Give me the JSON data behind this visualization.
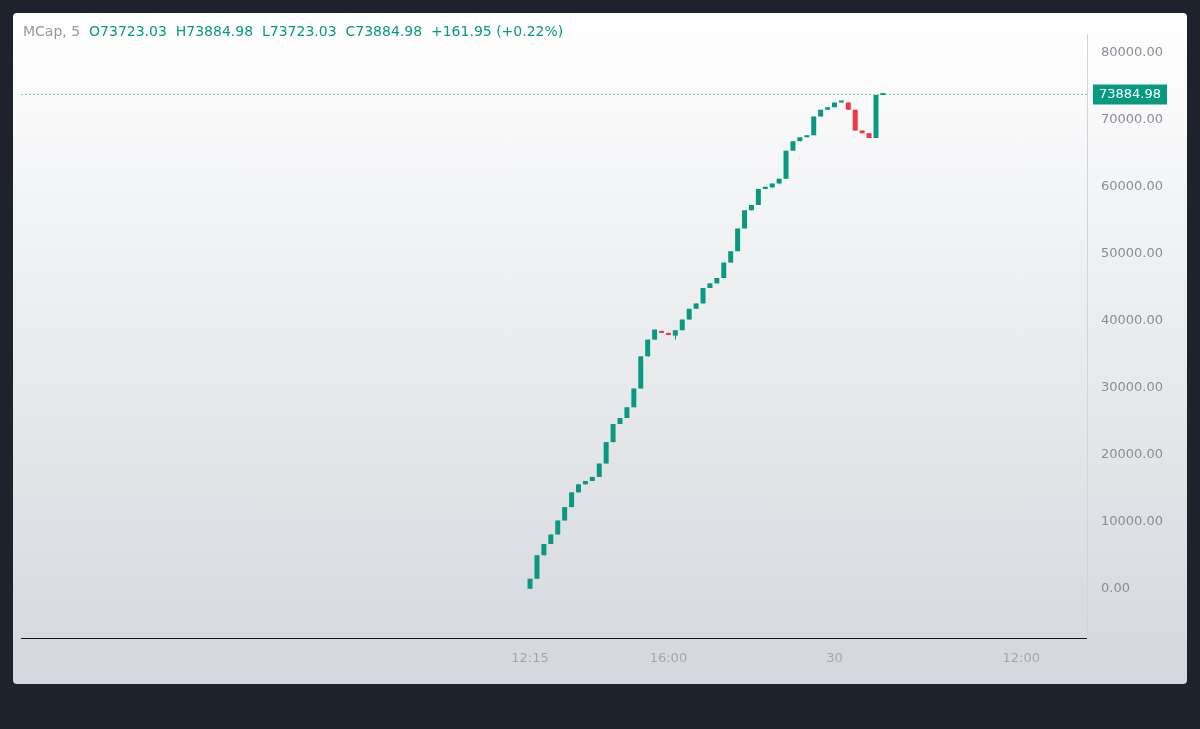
{
  "chart_data": {
    "type": "candlestick",
    "title": "MCap, 5",
    "subtitle": "O73723.03  H73884.98  L73723.03  C73884.98  +161.95 (+0.22%)",
    "categories": [
      null,
      null,
      null,
      null,
      null,
      null,
      null,
      null,
      null,
      null,
      null,
      null,
      null,
      null,
      null,
      null,
      null,
      null,
      null,
      null,
      null,
      null,
      null,
      null,
      null,
      null,
      null,
      null,
      null,
      null,
      null,
      null,
      null,
      null,
      null,
      null,
      null,
      null,
      null,
      null,
      null,
      null,
      null,
      null,
      null,
      null,
      null,
      null,
      null,
      null,
      null,
      null,
      null,
      null,
      null,
      null,
      null,
      null,
      null,
      null,
      null,
      null,
      null,
      null,
      null,
      null,
      null,
      null,
      null,
      null,
      null,
      null,
      null,
      "12:15",
      null,
      null,
      null,
      null,
      null,
      null,
      null,
      null,
      null,
      null,
      null,
      null,
      null,
      null,
      null,
      null,
      null,
      null,
      null,
      "16:00",
      null,
      null,
      null,
      null,
      null,
      null,
      null,
      null,
      null,
      null,
      null,
      null,
      null,
      null,
      null,
      null,
      null,
      null,
      null,
      null,
      null,
      null,
      null,
      "30",
      null,
      null,
      null,
      null,
      null,
      null,
      null,
      null,
      null,
      null,
      null,
      null,
      null,
      null,
      null,
      null,
      null,
      null,
      null,
      null,
      null,
      null,
      null,
      null,
      null,
      null,
      "12:00",
      null,
      null,
      null,
      null,
      null,
      null,
      null,
      null,
      null
    ],
    "ohlc": [
      null,
      null,
      null,
      null,
      null,
      null,
      null,
      null,
      null,
      null,
      null,
      null,
      null,
      null,
      null,
      null,
      null,
      null,
      null,
      null,
      null,
      null,
      null,
      null,
      null,
      null,
      null,
      null,
      null,
      null,
      null,
      null,
      null,
      null,
      null,
      null,
      null,
      null,
      null,
      null,
      null,
      null,
      null,
      null,
      null,
      null,
      null,
      null,
      null,
      null,
      null,
      null,
      null,
      null,
      null,
      null,
      null,
      null,
      null,
      null,
      null,
      null,
      null,
      null,
      null,
      null,
      null,
      null,
      null,
      null,
      null,
      null,
      null,
      [
        0,
        1500,
        0,
        1500
      ],
      [
        1500,
        5000,
        1500,
        5000
      ],
      [
        5000,
        6700,
        5000,
        6700
      ],
      [
        6700,
        8100,
        6700,
        8100
      ],
      [
        8100,
        10200,
        8100,
        10200
      ],
      [
        10200,
        12200,
        10200,
        12200
      ],
      [
        12200,
        14400,
        12200,
        14400
      ],
      [
        14400,
        15600,
        14400,
        15600
      ],
      [
        15600,
        16100,
        15600,
        16100
      ],
      [
        16100,
        16700,
        16100,
        16700
      ],
      [
        16700,
        18700,
        16700,
        18700
      ],
      [
        18700,
        21900,
        18700,
        21900
      ],
      [
        21900,
        24600,
        21900,
        24600
      ],
      [
        24600,
        25500,
        24600,
        25500
      ],
      [
        25500,
        27100,
        25500,
        27100
      ],
      [
        27100,
        29900,
        27100,
        29900
      ],
      [
        29900,
        34700,
        29900,
        34700
      ],
      [
        34700,
        37200,
        34700,
        37200
      ],
      [
        37200,
        38700,
        37200,
        38700
      ],
      [
        38500,
        38500,
        38200,
        38200
      ],
      [
        38200,
        38200,
        37900,
        37900
      ],
      [
        37800,
        38600,
        37200,
        38600
      ],
      [
        38600,
        40200,
        38600,
        40200
      ],
      [
        40200,
        41800,
        40200,
        41800
      ],
      [
        41800,
        42600,
        41800,
        42600
      ],
      [
        42600,
        44900,
        42600,
        44900
      ],
      [
        44900,
        45600,
        44900,
        45600
      ],
      [
        45600,
        46400,
        45600,
        46400
      ],
      [
        46400,
        48700,
        46400,
        48700
      ],
      [
        48700,
        50400,
        48700,
        50400
      ],
      [
        50400,
        53800,
        50400,
        53800
      ],
      [
        53800,
        56500,
        53800,
        56500
      ],
      [
        56500,
        57300,
        56500,
        57300
      ],
      [
        57300,
        59700,
        57300,
        59700
      ],
      [
        59700,
        60000,
        59700,
        60000
      ],
      [
        59900,
        60500,
        59900,
        60500
      ],
      [
        60500,
        61200,
        60500,
        61200
      ],
      [
        61200,
        65400,
        61200,
        65400
      ],
      [
        65400,
        66800,
        65400,
        66800
      ],
      [
        66800,
        67400,
        66800,
        67400
      ],
      [
        67400,
        67700,
        67400,
        67700
      ],
      [
        67700,
        70500,
        67700,
        70500
      ],
      [
        70500,
        71500,
        70500,
        71500
      ],
      [
        71500,
        71900,
        71500,
        71900
      ],
      [
        71900,
        72600,
        71900,
        72600
      ],
      [
        72600,
        72800,
        72600,
        72800
      ],
      [
        72600,
        72600,
        71500,
        71500
      ],
      [
        71500,
        71500,
        68400,
        68400
      ],
      [
        68400,
        68400,
        68000,
        68000
      ],
      [
        68000,
        68000,
        67300,
        67300
      ],
      [
        67300,
        73723.03,
        67300,
        73723.03
      ],
      [
        73723.03,
        73884.98,
        73723.03,
        73884.98
      ],
      null,
      null,
      null,
      null,
      null,
      null,
      null,
      null,
      null,
      null,
      null,
      null,
      null,
      null,
      null,
      null,
      null,
      null,
      null,
      null,
      null,
      null,
      null,
      null,
      null,
      null,
      null,
      null,
      null
    ],
    "ylim": [
      -7400,
      82700
    ],
    "yticks": [
      {
        "value": 0,
        "label": "0.00"
      },
      {
        "value": 10000,
        "label": "10000.00"
      },
      {
        "value": 20000,
        "label": "20000.00"
      },
      {
        "value": 30000,
        "label": "30000.00"
      },
      {
        "value": 40000,
        "label": "40000.00"
      },
      {
        "value": 50000,
        "label": "50000.00"
      },
      {
        "value": 60000,
        "label": "60000.00"
      },
      {
        "value": 70000,
        "label": "70000.00"
      },
      {
        "value": 80000,
        "label": "80000.00"
      }
    ],
    "ref_lines": [
      {
        "axis": "y",
        "value": 73884.98,
        "label": "73884.98",
        "color": "#089981",
        "line_style": "dotted"
      }
    ]
  }
}
